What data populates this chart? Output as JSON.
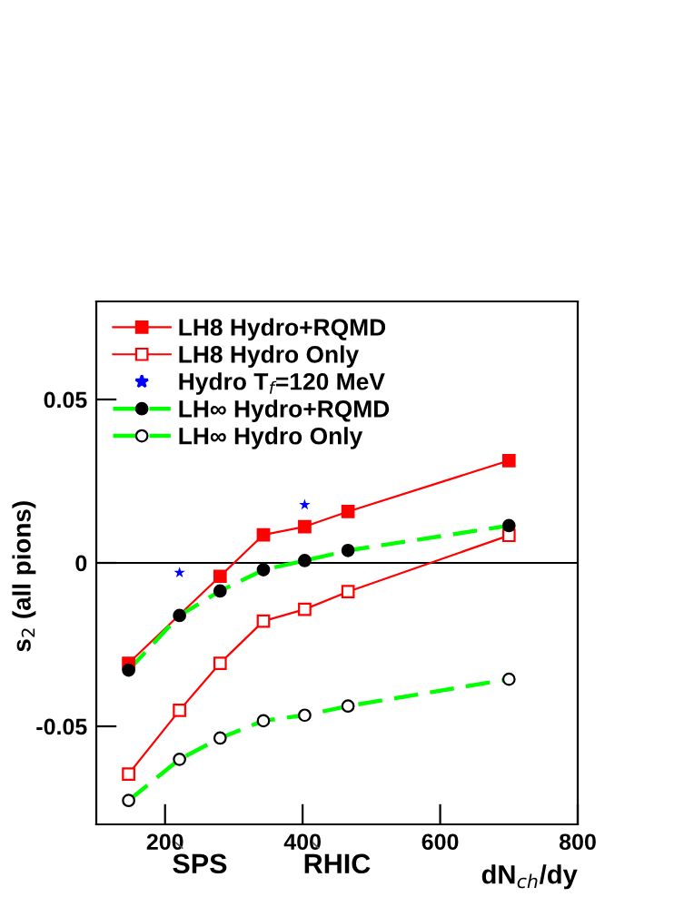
{
  "chart_data": {
    "type": "line",
    "xlabel": "dN$_{ch}$/dy",
    "ylabel": "s$_{2}$ (all pions)",
    "xlim": [
      100,
      800
    ],
    "ylim": [
      -0.08,
      0.08
    ],
    "xticks": [
      200,
      400,
      600,
      800
    ],
    "yticks": [
      {
        "value": -0.05,
        "label": "-0.05"
      },
      0,
      0.05
    ],
    "series": [
      {
        "name": "LH8 Hydro+RQMD",
        "color": "#ff0000",
        "marker": "square",
        "line_style": "solid",
        "x": [
          147,
          221,
          280,
          343,
          403,
          466,
          700
        ],
        "values": [
          -0.0307,
          null,
          -0.0041,
          0.0086,
          0.0111,
          0.0157,
          0.0313
        ]
      },
      {
        "name": "LH8 Hydro Only",
        "color": "#ff0000",
        "marker": "square-open",
        "line_style": "solid",
        "x": [
          147,
          221,
          280,
          343,
          403,
          466,
          700
        ],
        "values": [
          -0.0646,
          -0.0451,
          -0.0307,
          -0.0178,
          -0.0142,
          -0.0088,
          0.0084
        ]
      },
      {
        "name": "Hydro T$_{f}$=120 MeV",
        "color": "#0000ff",
        "type": "scatter",
        "marker": "star",
        "x": [
          221,
          403
        ],
        "values": [
          -0.003,
          0.0178
        ]
      },
      {
        "name": "LH∞ Hydro+RQMD",
        "color": "#00ff00",
        "colors": [
          "#000000",
          "#000000",
          "#000000",
          "#000000",
          "#000000",
          "#000000",
          "#000000"
        ],
        "marker": "circle",
        "line_style": "dashed",
        "x": [
          147,
          221,
          280,
          343,
          403,
          466,
          700
        ],
        "values": [
          -0.0328,
          -0.0161,
          -0.0086,
          -0.0021,
          0.0007,
          0.0038,
          0.0114
        ]
      },
      {
        "name": "LH∞ Hydro Only",
        "color": "#00ff00",
        "colors": [
          "#000000",
          "#000000",
          "#000000",
          "#000000",
          "#000000",
          "#000000",
          "#000000"
        ],
        "marker": "circle-open",
        "line_style": "dashed",
        "x": [
          147,
          221,
          280,
          343,
          403,
          466,
          700
        ],
        "values": [
          -0.0727,
          -0.0601,
          -0.0536,
          -0.0483,
          -0.0466,
          -0.0438,
          -0.0356
        ]
      }
    ],
    "ref_lines": [
      {
        "axis": "y",
        "value": 0,
        "color": "#000000",
        "line_style": "solid"
      }
    ],
    "annotations": [
      "SPS",
      "RHIC"
    ],
    "legend": "top left",
    "grid": false
  }
}
